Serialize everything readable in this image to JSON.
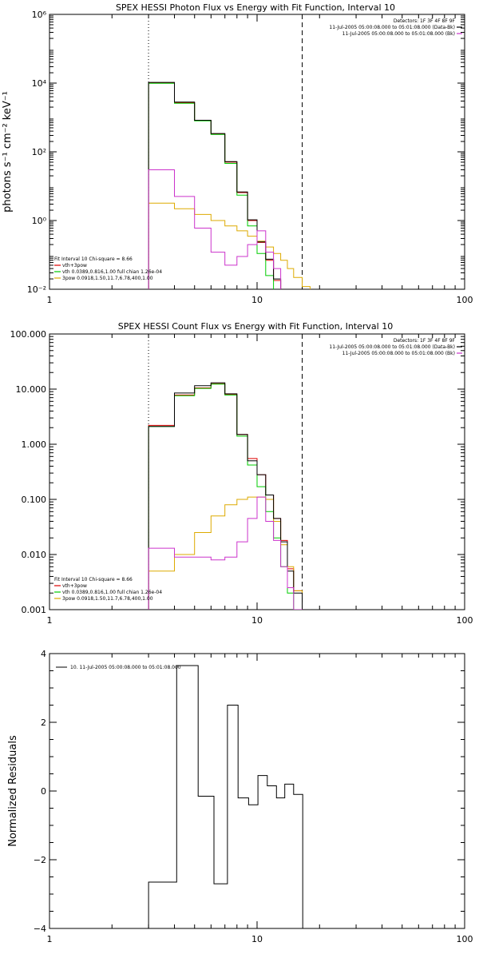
{
  "chart_data": [
    {
      "type": "line",
      "title": "SPEX HESSI Photon Flux vs Energy with Fit Function, Interval 10",
      "ylabel": "photons s⁻¹ cm⁻² keV⁻¹",
      "xlabel": "",
      "xscale": "log",
      "yscale": "log",
      "xlim": [
        1,
        100
      ],
      "ylim": [
        0.01,
        1000000
      ],
      "xticks": [
        {
          "v": 1,
          "label": "1"
        },
        {
          "v": 10,
          "label": "10"
        },
        {
          "v": 100,
          "label": "100"
        }
      ],
      "yticks": [
        {
          "v": 0.01,
          "label": "10⁻²"
        },
        {
          "v": 1,
          "label": "10⁰"
        },
        {
          "v": 100,
          "label": "10²"
        },
        {
          "v": 10000,
          "label": "10⁴"
        },
        {
          "v": 1000000,
          "label": "10⁶"
        }
      ],
      "vlines": [
        {
          "x": 3.0,
          "style": "dotted"
        },
        {
          "x": 16.5,
          "style": "dashed"
        }
      ],
      "legend_tr": [
        "Detectors: 1F 3F 4F 8F 9F",
        "11-Jul-2005 05:00:08.000 to 05:01:08.000 (Data-Bk)",
        "11-Jul-2005 05:00:08.000 to 05:01:08.000 (Bk)"
      ],
      "legend_tr_colors": [
        "#000000",
        "#000000",
        "#cc33cc"
      ],
      "legend_bl": [
        "Fit Interval 10   Chi-square = 8.66",
        "vth+3pow",
        "vth 0.0389,0.816,1.00  full chian 1.26e-04",
        "3pow 0.0918,1.50,11.7,6.78,400,1.00"
      ],
      "legend_bl_colors": [
        "#000000",
        "#dd0000",
        "#00cc00",
        "#ddaa00"
      ],
      "edges": [
        3.0,
        4.0,
        5.0,
        6.0,
        7.0,
        8.0,
        9.0,
        10.0,
        11.0,
        12.0,
        13.0,
        14.0,
        15.0,
        16.5,
        18.0
      ],
      "series": [
        {
          "name": "vth+3pow",
          "color": "#dd0000",
          "values": [
            10000,
            2700,
            820,
            330,
            50,
            6.5,
            1.0,
            0.23,
            0.07,
            0.018,
            null,
            null,
            null,
            null
          ]
        },
        {
          "name": "vth",
          "color": "#00cc00",
          "values": [
            9900,
            2600,
            800,
            320,
            46,
            5.5,
            0.7,
            0.11,
            0.025,
            0.006,
            null,
            null,
            null,
            null
          ]
        },
        {
          "name": "3pow",
          "color": "#ddaa00",
          "values": [
            3.2,
            2.2,
            1.5,
            1.0,
            0.7,
            0.5,
            0.35,
            0.25,
            0.17,
            0.11,
            0.07,
            0.04,
            0.022,
            0.012
          ]
        },
        {
          "name": "Data-Bk",
          "color": "#000000",
          "values": [
            10500,
            2800,
            830,
            340,
            52,
            6.8,
            1.05,
            0.24,
            0.075,
            0.02,
            null,
            null,
            null,
            null
          ]
        },
        {
          "name": "Bk",
          "color": "#cc33cc",
          "values": [
            30,
            5,
            0.6,
            0.12,
            0.05,
            0.09,
            0.2,
            0.5,
            0.12,
            0.04,
            null,
            null,
            null,
            null
          ]
        }
      ]
    },
    {
      "type": "line",
      "title": "SPEX HESSI Count Flux vs Energy with Fit Function, Interval 10",
      "ylabel": "",
      "xlabel": "",
      "xscale": "log",
      "yscale": "log",
      "xlim": [
        1,
        100
      ],
      "ylim": [
        0.001,
        100
      ],
      "xticks": [
        {
          "v": 1,
          "label": "1"
        },
        {
          "v": 10,
          "label": "10"
        },
        {
          "v": 100,
          "label": "100"
        }
      ],
      "yticks": [
        {
          "v": 0.001,
          "label": "0.001"
        },
        {
          "v": 0.01,
          "label": "0.010"
        },
        {
          "v": 0.1,
          "label": "0.100"
        },
        {
          "v": 1,
          "label": "1.000"
        },
        {
          "v": 10,
          "label": "10.000"
        },
        {
          "v": 100,
          "label": "100.000"
        }
      ],
      "vlines": [
        {
          "x": 3.0,
          "style": "dotted"
        },
        {
          "x": 16.5,
          "style": "dashed"
        }
      ],
      "legend_tr": [
        "Detectors: 1F 3F 4F 8F 9F",
        "11-Jul-2005 05:00:08.000 to 05:01:08.000 (Data-Bk)",
        "11-Jul-2005 05:00:08.000 to 05:01:08.000 (Bk)"
      ],
      "legend_tr_colors": [
        "#000000",
        "#000000",
        "#cc33cc"
      ],
      "legend_bl": [
        "Fit Interval 10   Chi-square = 8.66",
        "vth+3pow",
        "vth 0.0389,0.816,1.00  full chian 1.26e-04",
        "3pow 0.0918,1.50,11.7,6.78,400,1.00"
      ],
      "legend_bl_colors": [
        "#000000",
        "#dd0000",
        "#00cc00",
        "#ddaa00"
      ],
      "edges": [
        3.0,
        4.0,
        5.0,
        6.0,
        7.0,
        8.0,
        9.0,
        10.0,
        11.0,
        12.0,
        13.0,
        14.0,
        15.0,
        16.5,
        18.0
      ],
      "series": [
        {
          "name": "vth+3pow",
          "color": "#dd0000",
          "values": [
            2.2,
            7.8,
            10.5,
            12.5,
            8.0,
            1.5,
            0.55,
            0.28,
            0.12,
            0.045,
            0.018,
            0.0055,
            0.0022,
            0.001
          ]
        },
        {
          "name": "vth",
          "color": "#00cc00",
          "values": [
            2.1,
            7.6,
            10.3,
            12.3,
            7.8,
            1.4,
            0.42,
            0.17,
            0.06,
            0.02,
            0.006,
            0.002,
            0.001,
            0.0005
          ]
        },
        {
          "name": "3pow",
          "color": "#ddaa00",
          "values": [
            0.005,
            0.01,
            0.025,
            0.05,
            0.08,
            0.1,
            0.11,
            0.11,
            0.1,
            0.04,
            0.015,
            0.006,
            0.0022,
            0.001
          ]
        },
        {
          "name": "Data-Bk",
          "color": "#000000",
          "values": [
            2.1,
            8.5,
            11.5,
            13.0,
            8.2,
            1.5,
            0.5,
            0.28,
            0.12,
            0.045,
            0.017,
            0.005,
            0.002,
            0.001
          ]
        },
        {
          "name": "Bk",
          "color": "#cc33cc",
          "values": [
            0.013,
            0.009,
            0.009,
            0.008,
            0.009,
            0.017,
            0.045,
            0.11,
            0.04,
            0.018,
            0.006,
            0.0025,
            0.001,
            0.0005
          ]
        }
      ]
    },
    {
      "type": "line",
      "title": "",
      "ylabel": "Normalized Residuals",
      "xlabel": "",
      "xscale": "log",
      "yscale": "linear",
      "xlim": [
        1,
        100
      ],
      "ylim": [
        -4,
        4
      ],
      "xticks": [
        {
          "v": 1,
          "label": "1"
        },
        {
          "v": 10,
          "label": "10"
        },
        {
          "v": 100,
          "label": "100"
        }
      ],
      "yticks": [
        {
          "v": -4,
          "label": "−4"
        },
        {
          "v": -2,
          "label": "−2"
        },
        {
          "v": 0,
          "label": "0"
        },
        {
          "v": 2,
          "label": "2"
        },
        {
          "v": 4,
          "label": "4"
        }
      ],
      "legend_tl": [
        "10. 11-Jul-2005 05:00:08.000 to 05:01:08.000"
      ],
      "edges": [
        3.0,
        4.1,
        5.2,
        6.2,
        7.2,
        8.1,
        9.1,
        10.1,
        11.2,
        12.4,
        13.6,
        15.0,
        16.6
      ],
      "series": [
        {
          "name": "",
          "color": "#000000",
          "values": [
            -2.65,
            3.65,
            -0.15,
            -2.7,
            2.5,
            -0.2,
            -0.4,
            0.45,
            0.15,
            -0.2,
            0.2,
            -0.1
          ]
        }
      ]
    }
  ]
}
